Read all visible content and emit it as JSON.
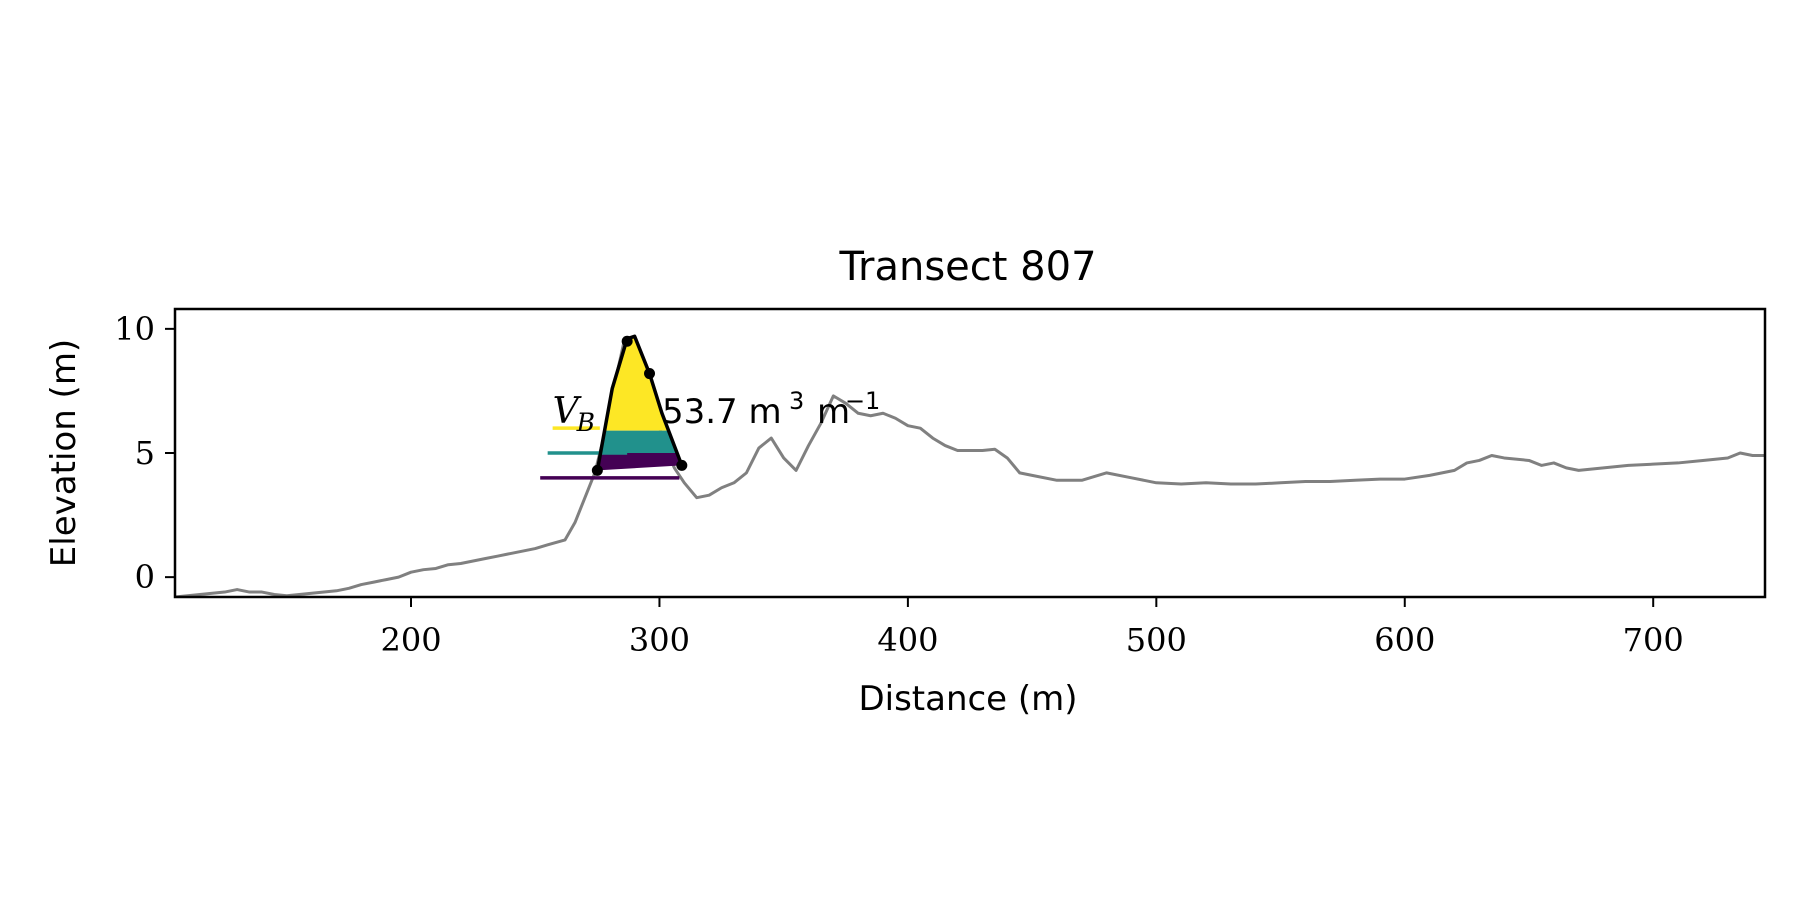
{
  "chart_data": {
    "type": "line",
    "title": "Transect 807",
    "xlabel": "Distance (m)",
    "ylabel": "Elevation (m)",
    "xlim": [
      105,
      745
    ],
    "ylim": [
      -0.8,
      10.8
    ],
    "xticks": [
      200,
      300,
      400,
      500,
      600,
      700
    ],
    "yticks": [
      0,
      5,
      10
    ],
    "grid": false,
    "legend": "none",
    "profile": {
      "color": "#808080",
      "x": [
        105,
        115,
        125,
        130,
        135,
        140,
        145,
        150,
        155,
        160,
        165,
        170,
        175,
        180,
        185,
        190,
        195,
        200,
        205,
        210,
        215,
        220,
        225,
        230,
        235,
        240,
        245,
        250,
        255,
        262,
        266,
        270,
        274,
        278,
        282,
        286,
        290,
        294,
        298,
        302,
        306,
        310,
        315,
        320,
        325,
        330,
        335,
        340,
        345,
        350,
        355,
        360,
        365,
        370,
        375,
        380,
        385,
        390,
        395,
        400,
        405,
        410,
        415,
        420,
        425,
        430,
        435,
        440,
        445,
        450,
        460,
        470,
        480,
        490,
        500,
        510,
        520,
        530,
        540,
        550,
        560,
        570,
        580,
        590,
        600,
        610,
        620,
        625,
        630,
        635,
        640,
        650,
        655,
        660,
        665,
        670,
        680,
        690,
        700,
        710,
        720,
        730,
        735,
        740,
        745
      ],
      "y": [
        -0.8,
        -0.7,
        -0.6,
        -0.5,
        -0.6,
        -0.6,
        -0.7,
        -0.75,
        -0.7,
        -0.65,
        -0.6,
        -0.55,
        -0.45,
        -0.3,
        -0.2,
        -0.1,
        0.0,
        0.2,
        0.3,
        0.35,
        0.5,
        0.55,
        0.65,
        0.75,
        0.85,
        0.95,
        1.05,
        1.15,
        1.3,
        1.5,
        2.2,
        3.2,
        4.2,
        5.8,
        7.8,
        9.6,
        9.0,
        8.2,
        6.8,
        5.3,
        4.4,
        3.8,
        3.2,
        3.3,
        3.6,
        3.8,
        4.2,
        5.2,
        5.6,
        4.8,
        4.3,
        5.3,
        6.2,
        7.3,
        7.0,
        6.6,
        6.5,
        6.6,
        6.4,
        6.1,
        6.0,
        5.6,
        5.3,
        5.1,
        5.1,
        5.1,
        5.15,
        4.8,
        4.2,
        4.1,
        3.9,
        3.9,
        4.2,
        4.0,
        3.8,
        3.75,
        3.8,
        3.75,
        3.75,
        3.8,
        3.85,
        3.85,
        3.9,
        3.95,
        3.95,
        4.1,
        4.3,
        4.6,
        4.7,
        4.9,
        4.8,
        4.7,
        4.5,
        4.6,
        4.4,
        4.3,
        4.4,
        4.5,
        4.55,
        4.6,
        4.7,
        4.8,
        5.0,
        4.9,
        4.9
      ]
    },
    "dune": {
      "outline_color": "#000000",
      "outline": [
        [
          275,
          4.3
        ],
        [
          281,
          7.6
        ],
        [
          287,
          9.6
        ],
        [
          290,
          9.7
        ],
        [
          296,
          8.2
        ],
        [
          301,
          6.6
        ],
        [
          309,
          4.5
        ]
      ],
      "key_points": [
        [
          275,
          4.3
        ],
        [
          287,
          9.5
        ],
        [
          296,
          8.2
        ],
        [
          309,
          4.5
        ]
      ],
      "bands": [
        {
          "from": 5.9,
          "to": 9.7,
          "color": "#fde725"
        },
        {
          "from": 5.0,
          "to": 5.9,
          "color": "#21918c"
        },
        {
          "from": 4.0,
          "to": 5.0,
          "color": "#440154"
        }
      ],
      "base_lines": [
        {
          "y": 6.0,
          "x1": 257,
          "x2": 276,
          "color": "#fde725"
        },
        {
          "y": 5.0,
          "x1": 255,
          "x2": 287,
          "color": "#21918c"
        },
        {
          "y": 4.0,
          "x1": 252,
          "x2": 308,
          "color": "#440154"
        }
      ]
    },
    "annotation": {
      "symbol": "V",
      "subscript": "B",
      "value_text": "53.7 m",
      "exp1": "3",
      "unit2": "m",
      "exp2": "−1",
      "x": 257,
      "y": 6.2
    }
  }
}
